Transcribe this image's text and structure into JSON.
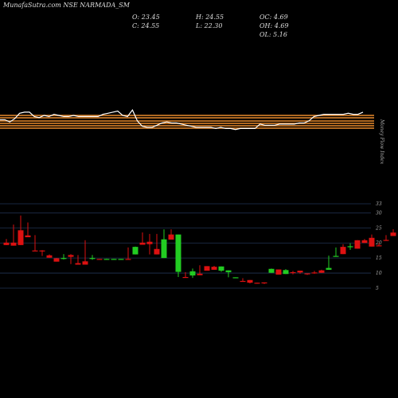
{
  "header": {
    "title": "MunafaSutra.com NSE NARMADA_SM",
    "o": "O: 23.45",
    "c": "C: 24.55",
    "h": "H: 24.55",
    "l": "L: 22.30",
    "oc": "OC: 4.69",
    "oh": "OH: 4.69",
    "ol": "OL: 5.16"
  },
  "side_label": "Money Flow Index",
  "colors": {
    "background": "#000000",
    "up": "#22cc22",
    "down": "#dd1111",
    "line": "#ffffff",
    "band": "#e8892a",
    "grid": "#223355"
  },
  "chart_data": [
    {
      "type": "line",
      "title": "",
      "values": [
        63,
        63,
        61,
        64,
        69,
        70,
        70,
        66,
        65,
        67,
        66,
        68,
        67,
        66,
        66,
        67,
        66,
        66,
        66,
        66,
        66,
        68,
        69,
        70,
        71,
        67,
        66,
        72,
        62,
        57,
        56,
        56,
        58,
        60,
        61,
        60,
        60,
        59,
        58,
        57,
        56,
        56,
        56,
        56,
        55,
        56,
        55,
        55,
        54,
        55,
        55,
        55,
        55,
        59,
        58,
        58,
        58,
        59,
        59,
        59,
        59,
        60,
        60,
        62,
        66,
        67,
        68,
        68,
        68,
        68,
        68,
        69,
        68,
        68,
        70
      ],
      "ylim": [
        45,
        100
      ]
    },
    {
      "type": "candlestick",
      "ylabel": "",
      "yticks": [
        "5",
        "10",
        "15",
        "20",
        "25",
        "30",
        "33"
      ],
      "ylim": [
        5,
        33
      ],
      "series": [
        {
          "name": "ohlc",
          "candles": [
            [
              20.1,
              19.3,
              21.3,
              20.1
            ],
            [
              20.1,
              19.1,
              26.1,
              25.4
            ],
            [
              24.2,
              19.3,
              29.1,
              26.3
            ],
            [
              22.5,
              21.9,
              26.8,
              26.1
            ],
            [
              17.5,
              17.3,
              22.6,
              22.4
            ],
            [
              17.5,
              17.3,
              17.6,
              15.7
            ],
            [
              15.9,
              15.1,
              16.1,
              16.2
            ],
            [
              14.9,
              13.8,
              15.0,
              15.0
            ],
            [
              14.9,
              15.0,
              16.3,
              14.5
            ],
            [
              16.0,
              15.4,
              16.3,
              13.0
            ],
            [
              13.3,
              12.8,
              16.0,
              15.9
            ],
            [
              13.9,
              12.8,
              20.9,
              16.4
            ],
            [
              14.8,
              15.0,
              16.0,
              14.4
            ],
            [
              14.7,
              14.6,
              14.7,
              14.6
            ],
            [
              14.7,
              14.7,
              14.8,
              14.7
            ],
            [
              14.6,
              14.7,
              14.7,
              14.6
            ],
            [
              14.7,
              14.7,
              14.7,
              14.6
            ],
            [
              14.7,
              14.6,
              18.5,
              18.0
            ],
            [
              16.2,
              18.7,
              18.8,
              18.5
            ],
            [
              20.1,
              19.4,
              23.5,
              20.2
            ],
            [
              20.4,
              19.6,
              23.0,
              16.2
            ],
            [
              18.0,
              16.2,
              20.1,
              23.0
            ],
            [
              15.0,
              21.2,
              16.4,
              24.5
            ],
            [
              22.8,
              21.1,
              24.5,
              22.3
            ],
            [
              10.4,
              22.8,
              10.0,
              8.7
            ],
            [
              8.7,
              8.5,
              10.3,
              9.4
            ],
            [
              9.2,
              10.6,
              11.5,
              8.4
            ],
            [
              9.8,
              9.3,
              9.4,
              12.6
            ],
            [
              12.3,
              10.8,
              11.9,
              11.7
            ],
            [
              12.1,
              11.1,
              12.4,
              11.9
            ],
            [
              10.8,
              12.2,
              12.0,
              10.4
            ],
            [
              10.3,
              10.9,
              8.6,
              8.7
            ],
            [
              8.6,
              8.6,
              8.5,
              8.3
            ],
            [
              7.4,
              7.3,
              8.3,
              7.5
            ],
            [
              7.7,
              6.8,
              7.6,
              6.6
            ],
            [
              6.8,
              6.6,
              6.7,
              6.5
            ],
            [
              6.9,
              6.8,
              6.7,
              6.4
            ],
            [
              10.1,
              11.4,
              11.3,
              11.5
            ],
            [
              11.2,
              9.5,
              10.0,
              9.7
            ],
            [
              9.7,
              11.0,
              11.3,
              9.8
            ],
            [
              10.3,
              10.2,
              10.7,
              9.6
            ],
            [
              10.8,
              10.2,
              9.8,
              9.8
            ],
            [
              9.9,
              9.6,
              9.9,
              9.4
            ],
            [
              10.2,
              10.0,
              10.7,
              9.8
            ],
            [
              10.9,
              10.1,
              11.1,
              10.9
            ],
            [
              11.1,
              11.7,
              15.8,
              11.4
            ],
            [
              15.5,
              15.7,
              18.5,
              16.3
            ],
            [
              18.7,
              16.3,
              19.6,
              18.6
            ],
            [
              18.6,
              18.9,
              19.9,
              17.7
            ],
            [
              20.9,
              18.1,
              20.9,
              20.4
            ],
            [
              20.9,
              20.0,
              21.3,
              20.9
            ],
            [
              21.7,
              18.8,
              22.8,
              19.6
            ],
            [
              19.2,
              18.9,
              20.0,
              19.4
            ],
            [
              21.0,
              20.7,
              22.6,
              21.3
            ],
            [
              23.45,
              22.3,
              24.55,
              24.55
            ]
          ]
        }
      ]
    }
  ]
}
